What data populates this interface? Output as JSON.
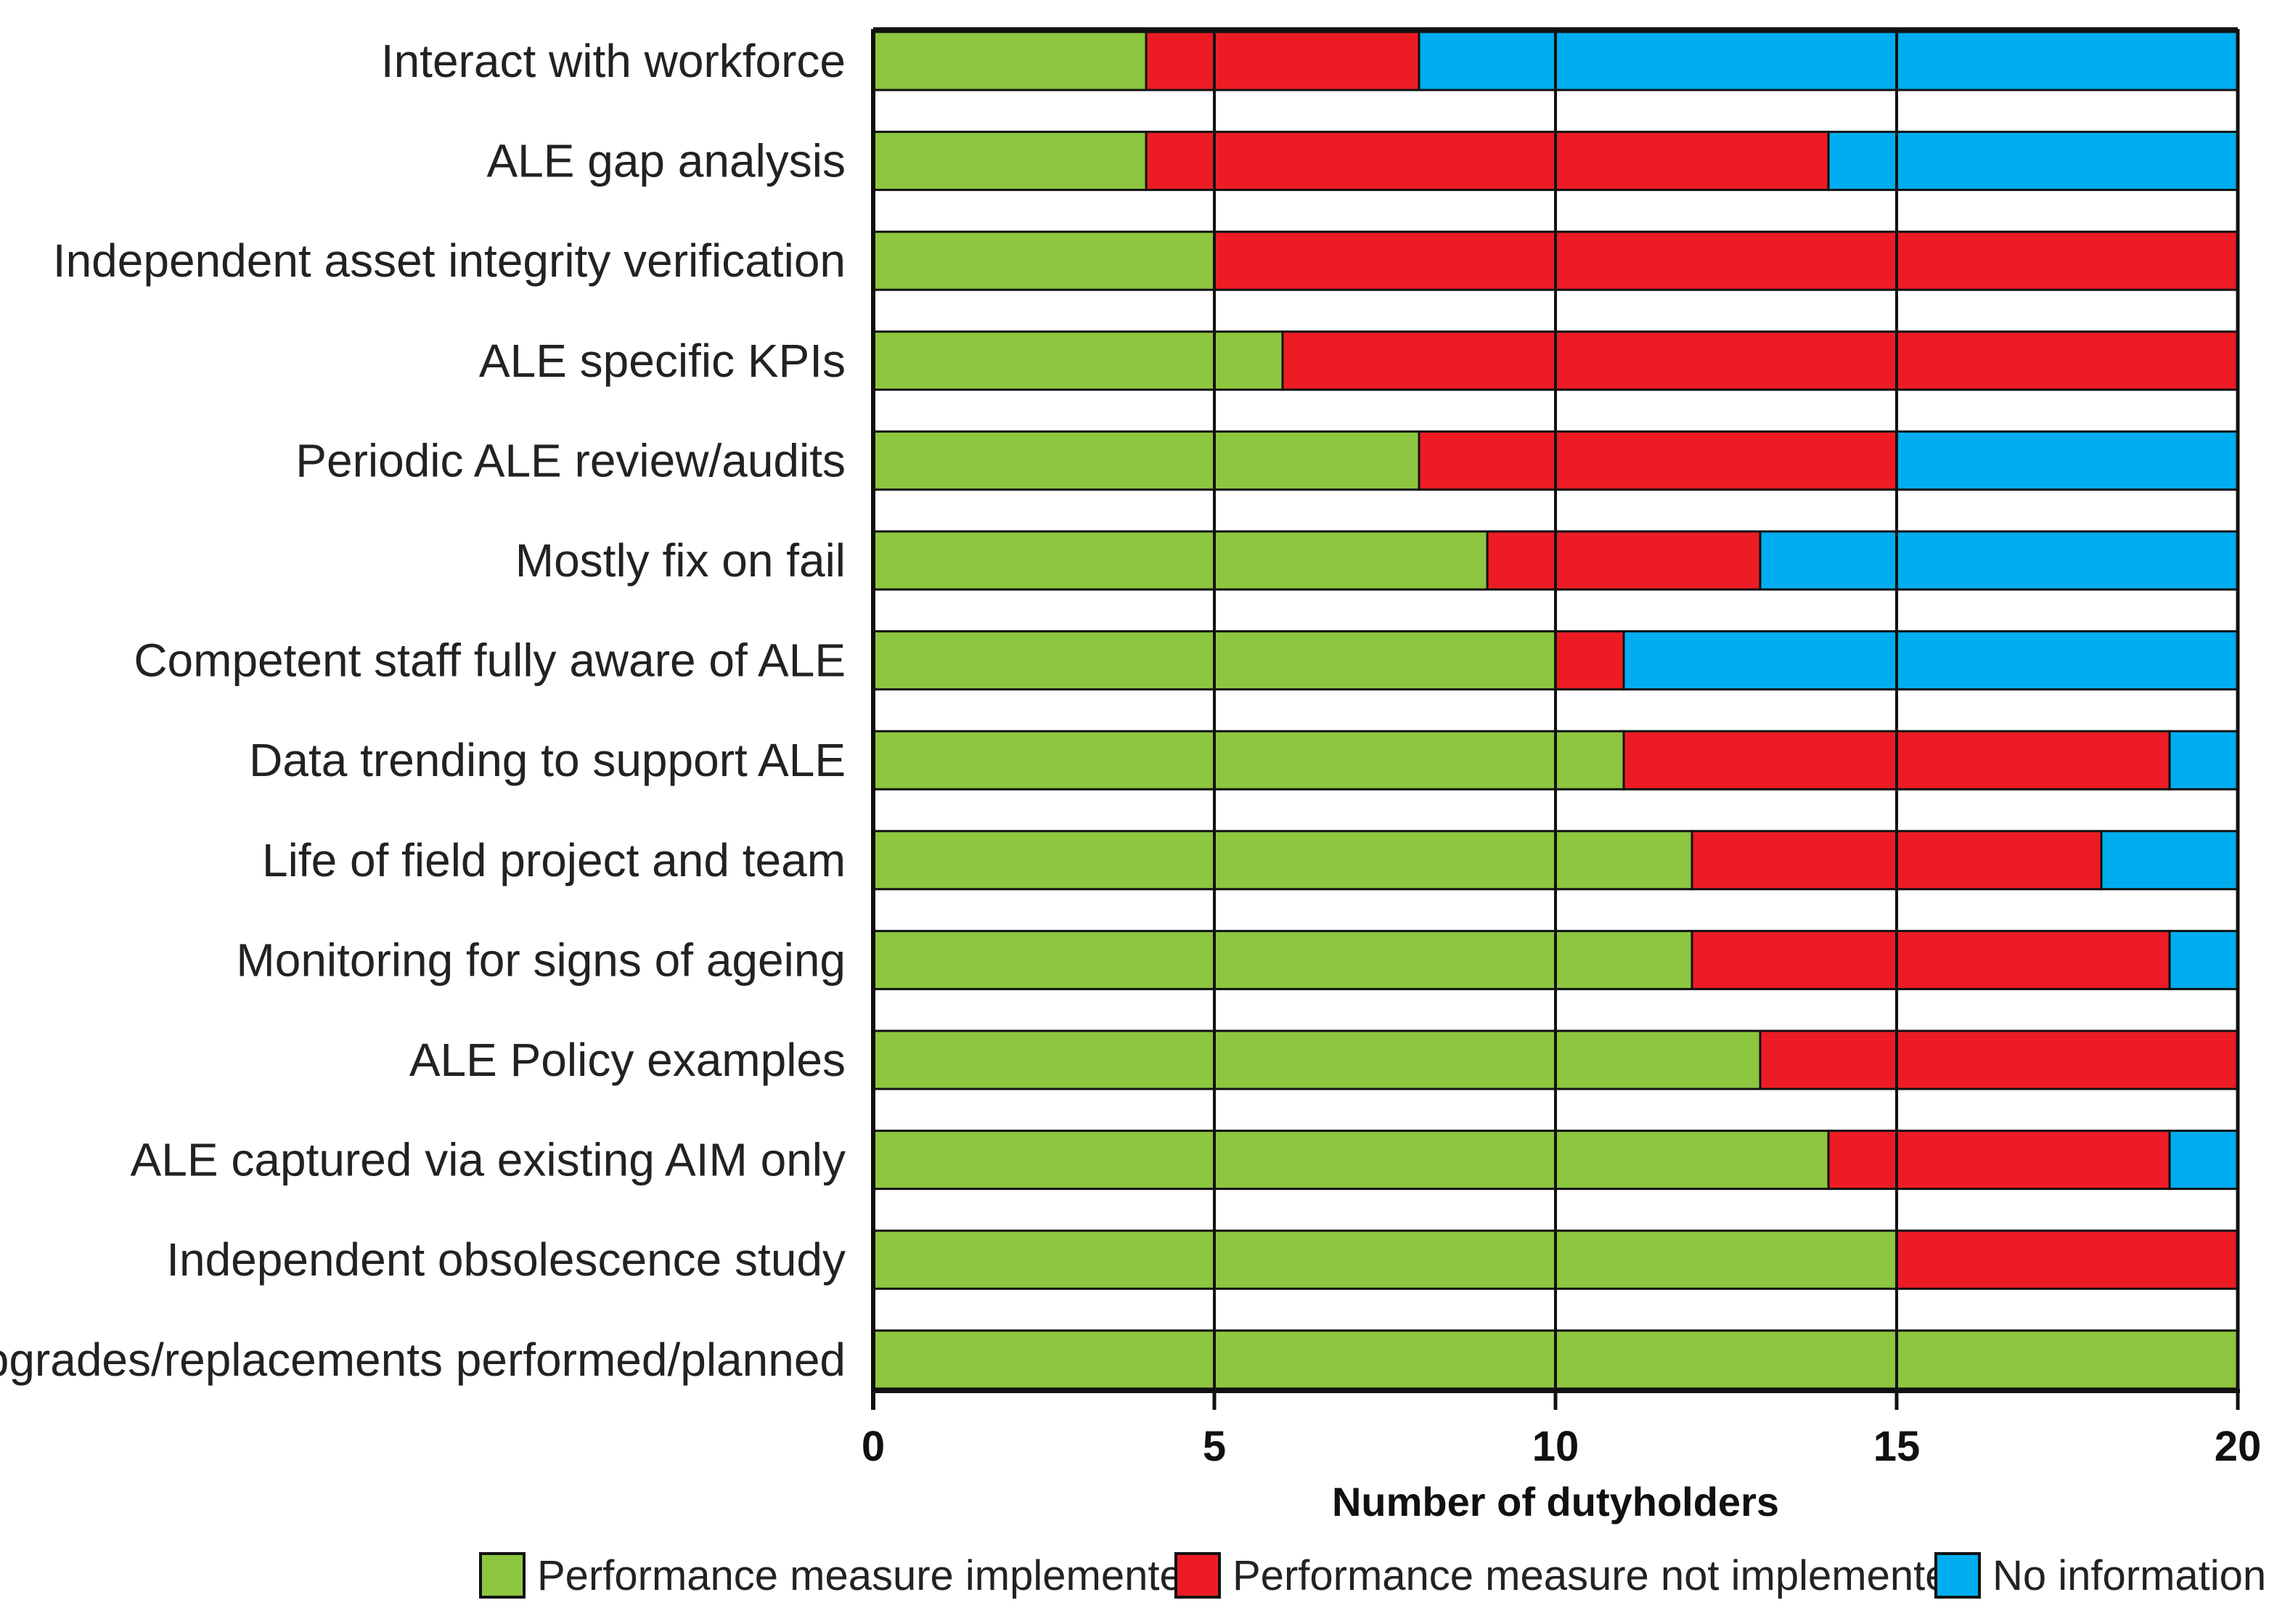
{
  "chart_data": {
    "type": "bar",
    "orientation": "horizontal",
    "stacked": true,
    "title": "",
    "xlabel": "Number of dutyholders",
    "ylabel": "",
    "xlim": [
      0,
      20
    ],
    "xticks": [
      0,
      5,
      10,
      15,
      20
    ],
    "grid": true,
    "legend_position": "bottom",
    "categories": [
      "Interact with workforce",
      "ALE gap analysis",
      "Independent asset integrity verification",
      "ALE specific KPIs",
      "Periodic ALE review/audits",
      "Mostly fix on fail",
      "Competent staff fully aware of ALE",
      "Data trending to support ALE",
      "Life of field project and team",
      "Monitoring for signs of ageing",
      "ALE Policy examples",
      "ALE captured via existing AIM only",
      "Independent obsolescence study",
      "Upgrades/replacements performed/planned"
    ],
    "series": [
      {
        "name": "Performance measure implemented",
        "color": "#8dc63f",
        "values": [
          4,
          4,
          5,
          6,
          8,
          9,
          10,
          11,
          12,
          12,
          13,
          14,
          15,
          20
        ]
      },
      {
        "name": "Performance measure not implemented",
        "color": "#ed1c24",
        "values": [
          4,
          10,
          15,
          14,
          7,
          4,
          1,
          8,
          6,
          7,
          7,
          5,
          5,
          0
        ]
      },
      {
        "name": "No information",
        "color": "#00aeef",
        "values": [
          12,
          6,
          0,
          0,
          5,
          7,
          9,
          1,
          2,
          1,
          0,
          1,
          0,
          0
        ]
      }
    ]
  }
}
